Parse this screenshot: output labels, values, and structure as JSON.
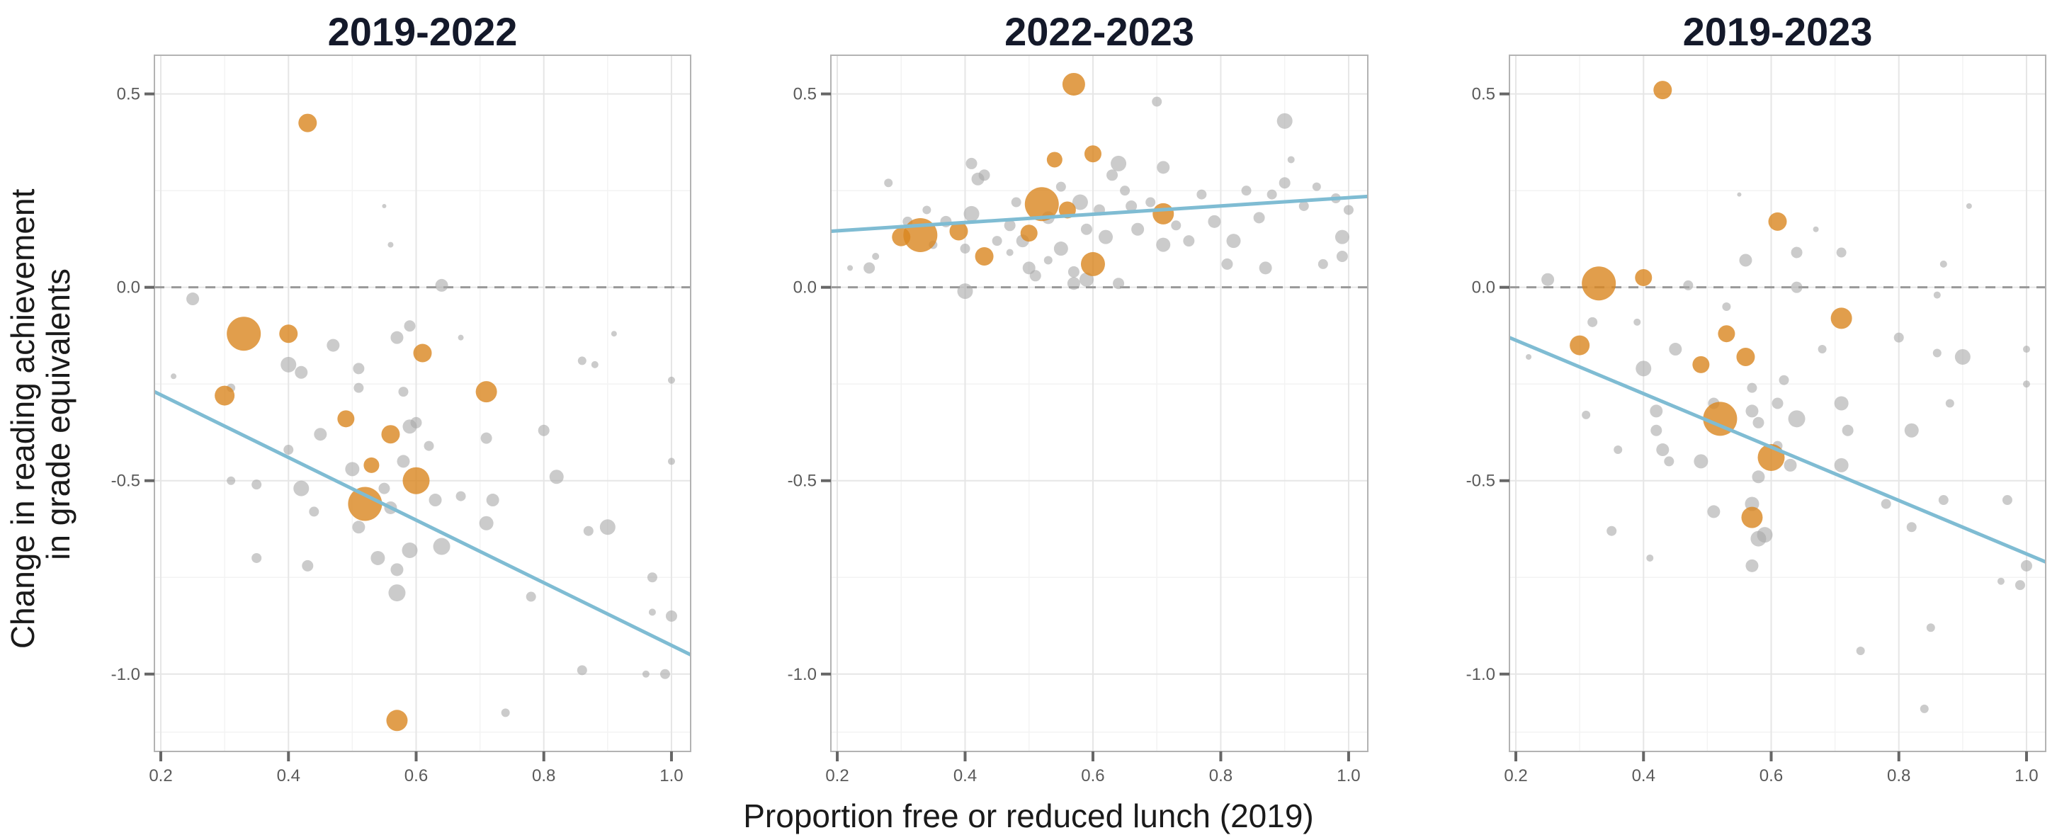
{
  "colors": {
    "highlight": "#d9861f",
    "other": "#a8a8a8",
    "trend": "#7fbcd3",
    "zero_line": "#999999",
    "title": "#14192a"
  },
  "figure": {
    "ylabel_line1": "Change in reading  achievement",
    "ylabel_line2": "in grade equivalents",
    "xlabel": "Proportion free or reduced lunch (2019)"
  },
  "chart_data": [
    {
      "type": "scatter",
      "title": "2019-2022",
      "xlim": [
        0.19,
        1.03
      ],
      "ylim": [
        -1.2,
        0.6
      ],
      "xticks": [
        0.2,
        0.4,
        0.6,
        0.8,
        1.0
      ],
      "xtick_labels": [
        "0.2",
        "0.4",
        "0.6",
        "0.8",
        "1.0"
      ],
      "yticks": [
        -1.0,
        -0.5,
        0.0,
        0.5
      ],
      "ytick_labels": [
        "-1.0",
        "-0.5",
        "0.0",
        "0.5"
      ],
      "zero_line": true,
      "trend": {
        "x0": 0.19,
        "y0": -0.27,
        "x1": 1.03,
        "y1": -0.95
      },
      "highlight": [
        [
          0.43,
          0.425,
          13
        ],
        [
          0.33,
          -0.12,
          24
        ],
        [
          0.4,
          -0.12,
          13
        ],
        [
          0.3,
          -0.28,
          14
        ],
        [
          0.61,
          -0.17,
          13
        ],
        [
          0.71,
          -0.27,
          15
        ],
        [
          0.49,
          -0.34,
          12
        ],
        [
          0.56,
          -0.38,
          13
        ],
        [
          0.53,
          -0.46,
          11
        ],
        [
          0.52,
          -0.56,
          24
        ],
        [
          0.6,
          -0.5,
          19
        ],
        [
          0.57,
          -1.12,
          15
        ]
      ],
      "other": [
        [
          0.25,
          -0.03,
          9
        ],
        [
          0.22,
          -0.23,
          4
        ],
        [
          0.31,
          -0.26,
          6
        ],
        [
          0.31,
          -0.5,
          6
        ],
        [
          0.35,
          -0.51,
          7
        ],
        [
          0.35,
          -0.7,
          7
        ],
        [
          0.4,
          -0.2,
          11
        ],
        [
          0.42,
          -0.22,
          9
        ],
        [
          0.4,
          -0.42,
          7
        ],
        [
          0.42,
          -0.52,
          11
        ],
        [
          0.43,
          -0.72,
          8
        ],
        [
          0.45,
          -0.38,
          9
        ],
        [
          0.44,
          -0.58,
          7
        ],
        [
          0.47,
          -0.15,
          9
        ],
        [
          0.51,
          -0.21,
          8
        ],
        [
          0.51,
          -0.26,
          7
        ],
        [
          0.5,
          -0.47,
          10
        ],
        [
          0.51,
          -0.62,
          9
        ],
        [
          0.55,
          0.21,
          3
        ],
        [
          0.56,
          0.11,
          4
        ],
        [
          0.57,
          -0.13,
          9
        ],
        [
          0.59,
          -0.1,
          8
        ],
        [
          0.58,
          -0.27,
          7
        ],
        [
          0.59,
          -0.36,
          10
        ],
        [
          0.6,
          -0.35,
          8
        ],
        [
          0.58,
          -0.45,
          9
        ],
        [
          0.55,
          -0.52,
          8
        ],
        [
          0.56,
          -0.57,
          9
        ],
        [
          0.54,
          -0.7,
          10
        ],
        [
          0.57,
          -0.73,
          9
        ],
        [
          0.59,
          -0.68,
          11
        ],
        [
          0.57,
          -0.79,
          12
        ],
        [
          0.62,
          -0.41,
          7
        ],
        [
          0.63,
          -0.55,
          9
        ],
        [
          0.64,
          0.005,
          9
        ],
        [
          0.64,
          -0.67,
          12
        ],
        [
          0.67,
          -0.54,
          7
        ],
        [
          0.67,
          -0.13,
          4
        ],
        [
          0.71,
          -0.39,
          8
        ],
        [
          0.72,
          -0.55,
          9
        ],
        [
          0.71,
          -0.61,
          10
        ],
        [
          0.74,
          -1.1,
          6
        ],
        [
          0.78,
          -0.8,
          7
        ],
        [
          0.8,
          -0.37,
          8
        ],
        [
          0.82,
          -0.49,
          10
        ],
        [
          0.86,
          -0.19,
          6
        ],
        [
          0.88,
          -0.2,
          5
        ],
        [
          0.87,
          -0.63,
          7
        ],
        [
          0.9,
          -0.62,
          11
        ],
        [
          0.91,
          -0.12,
          4
        ],
        [
          0.86,
          -0.99,
          7
        ],
        [
          0.96,
          -1.0,
          5
        ],
        [
          0.97,
          -0.75,
          7
        ],
        [
          0.97,
          -0.84,
          5
        ],
        [
          1.0,
          -0.24,
          5
        ],
        [
          1.0,
          -0.45,
          5
        ],
        [
          1.0,
          -0.85,
          8
        ],
        [
          0.99,
          -1.0,
          7
        ]
      ]
    },
    {
      "type": "scatter",
      "title": "2022-2023",
      "xlim": [
        0.19,
        1.03
      ],
      "ylim": [
        -1.2,
        0.6
      ],
      "xticks": [
        0.2,
        0.4,
        0.6,
        0.8,
        1.0
      ],
      "xtick_labels": [
        "0.2",
        "0.4",
        "0.6",
        "0.8",
        "1.0"
      ],
      "yticks": [
        -1.0,
        -0.5,
        0.0,
        0.5
      ],
      "ytick_labels": [
        "-1.0",
        "-0.5",
        "0.0",
        "0.5"
      ],
      "zero_line": true,
      "trend": {
        "x0": 0.19,
        "y0": 0.145,
        "x1": 1.03,
        "y1": 0.235
      },
      "highlight": [
        [
          0.57,
          0.525,
          16
        ],
        [
          0.52,
          0.215,
          24
        ],
        [
          0.33,
          0.135,
          24
        ],
        [
          0.3,
          0.13,
          13
        ],
        [
          0.39,
          0.145,
          13
        ],
        [
          0.43,
          0.08,
          13
        ],
        [
          0.5,
          0.14,
          12
        ],
        [
          0.54,
          0.33,
          11
        ],
        [
          0.56,
          0.2,
          12
        ],
        [
          0.6,
          0.345,
          12
        ],
        [
          0.6,
          0.06,
          17
        ],
        [
          0.71,
          0.19,
          15
        ]
      ],
      "other": [
        [
          0.22,
          0.05,
          4
        ],
        [
          0.25,
          0.05,
          8
        ],
        [
          0.28,
          0.27,
          6
        ],
        [
          0.31,
          0.17,
          7
        ],
        [
          0.35,
          0.11,
          6
        ],
        [
          0.37,
          0.17,
          8
        ],
        [
          0.4,
          0.1,
          7
        ],
        [
          0.41,
          0.32,
          8
        ],
        [
          0.42,
          0.28,
          9
        ],
        [
          0.43,
          0.29,
          8
        ],
        [
          0.41,
          0.19,
          11
        ],
        [
          0.4,
          -0.01,
          11
        ],
        [
          0.45,
          0.12,
          7
        ],
        [
          0.47,
          0.16,
          8
        ],
        [
          0.48,
          0.22,
          7
        ],
        [
          0.49,
          0.12,
          9
        ],
        [
          0.5,
          0.05,
          9
        ],
        [
          0.51,
          0.03,
          8
        ],
        [
          0.53,
          0.18,
          9
        ],
        [
          0.55,
          0.1,
          10
        ],
        [
          0.55,
          0.26,
          7
        ],
        [
          0.57,
          0.04,
          8
        ],
        [
          0.57,
          0.01,
          9
        ],
        [
          0.58,
          0.22,
          11
        ],
        [
          0.59,
          0.15,
          8
        ],
        [
          0.59,
          0.02,
          10
        ],
        [
          0.61,
          0.2,
          8
        ],
        [
          0.62,
          0.13,
          10
        ],
        [
          0.63,
          0.29,
          8
        ],
        [
          0.64,
          0.32,
          11
        ],
        [
          0.64,
          0.01,
          8
        ],
        [
          0.65,
          0.25,
          7
        ],
        [
          0.66,
          0.21,
          8
        ],
        [
          0.67,
          0.15,
          9
        ],
        [
          0.69,
          0.22,
          7
        ],
        [
          0.7,
          0.48,
          7
        ],
        [
          0.71,
          0.31,
          9
        ],
        [
          0.71,
          0.11,
          10
        ],
        [
          0.73,
          0.16,
          7
        ],
        [
          0.75,
          0.12,
          8
        ],
        [
          0.77,
          0.24,
          7
        ],
        [
          0.79,
          0.17,
          9
        ],
        [
          0.81,
          0.06,
          8
        ],
        [
          0.82,
          0.12,
          10
        ],
        [
          0.84,
          0.25,
          7
        ],
        [
          0.86,
          0.18,
          8
        ],
        [
          0.87,
          0.05,
          9
        ],
        [
          0.88,
          0.24,
          7
        ],
        [
          0.9,
          0.43,
          11
        ],
        [
          0.9,
          0.27,
          8
        ],
        [
          0.91,
          0.33,
          5
        ],
        [
          0.93,
          0.21,
          7
        ],
        [
          0.95,
          0.26,
          6
        ],
        [
          0.96,
          0.06,
          7
        ],
        [
          0.98,
          0.23,
          7
        ],
        [
          0.99,
          0.13,
          10
        ],
        [
          0.99,
          0.08,
          8
        ],
        [
          1.0,
          0.2,
          7
        ],
        [
          0.26,
          0.08,
          5
        ],
        [
          0.34,
          0.2,
          6
        ],
        [
          0.47,
          0.09,
          5
        ],
        [
          0.53,
          0.07,
          6
        ]
      ]
    },
    {
      "type": "scatter",
      "title": "2019-2023",
      "xlim": [
        0.19,
        1.03
      ],
      "ylim": [
        -1.2,
        0.6
      ],
      "xticks": [
        0.2,
        0.4,
        0.6,
        0.8,
        1.0
      ],
      "xtick_labels": [
        "0.2",
        "0.4",
        "0.6",
        "0.8",
        "1.0"
      ],
      "yticks": [
        -1.0,
        -0.5,
        0.0,
        0.5
      ],
      "ytick_labels": [
        "-1.0",
        "-0.5",
        "0.0",
        "0.5"
      ],
      "zero_line": true,
      "trend": {
        "x0": 0.19,
        "y0": -0.13,
        "x1": 1.03,
        "y1": -0.71
      },
      "highlight": [
        [
          0.43,
          0.51,
          13
        ],
        [
          0.33,
          0.01,
          24
        ],
        [
          0.4,
          0.025,
          12
        ],
        [
          0.3,
          -0.15,
          14
        ],
        [
          0.61,
          0.17,
          13
        ],
        [
          0.71,
          -0.08,
          15
        ],
        [
          0.53,
          -0.12,
          12
        ],
        [
          0.49,
          -0.2,
          12
        ],
        [
          0.56,
          -0.18,
          13
        ],
        [
          0.52,
          -0.34,
          24
        ],
        [
          0.6,
          -0.44,
          19
        ],
        [
          0.57,
          -0.595,
          15
        ]
      ],
      "other": [
        [
          0.25,
          0.02,
          9
        ],
        [
          0.22,
          -0.18,
          4
        ],
        [
          0.31,
          -0.33,
          6
        ],
        [
          0.32,
          -0.09,
          7
        ],
        [
          0.35,
          -0.63,
          7
        ],
        [
          0.36,
          -0.42,
          6
        ],
        [
          0.4,
          -0.21,
          11
        ],
        [
          0.42,
          -0.32,
          9
        ],
        [
          0.42,
          -0.37,
          8
        ],
        [
          0.43,
          -0.42,
          9
        ],
        [
          0.44,
          -0.45,
          7
        ],
        [
          0.45,
          -0.16,
          9
        ],
        [
          0.47,
          0.005,
          7
        ],
        [
          0.49,
          -0.45,
          10
        ],
        [
          0.51,
          -0.3,
          8
        ],
        [
          0.51,
          -0.58,
          9
        ],
        [
          0.55,
          0.24,
          3
        ],
        [
          0.56,
          0.07,
          9
        ],
        [
          0.57,
          -0.26,
          7
        ],
        [
          0.57,
          -0.32,
          9
        ],
        [
          0.58,
          -0.35,
          8
        ],
        [
          0.58,
          -0.49,
          9
        ],
        [
          0.57,
          -0.56,
          10
        ],
        [
          0.57,
          -0.72,
          9
        ],
        [
          0.58,
          -0.65,
          11
        ],
        [
          0.59,
          -0.64,
          11
        ],
        [
          0.61,
          -0.3,
          8
        ],
        [
          0.61,
          -0.41,
          7
        ],
        [
          0.62,
          -0.24,
          7
        ],
        [
          0.63,
          -0.46,
          9
        ],
        [
          0.64,
          0.0,
          8
        ],
        [
          0.64,
          -0.34,
          12
        ],
        [
          0.64,
          0.09,
          8
        ],
        [
          0.67,
          0.15,
          4
        ],
        [
          0.71,
          0.09,
          7
        ],
        [
          0.71,
          -0.3,
          10
        ],
        [
          0.71,
          -0.46,
          10
        ],
        [
          0.72,
          -0.37,
          8
        ],
        [
          0.74,
          -0.94,
          6
        ],
        [
          0.78,
          -0.56,
          7
        ],
        [
          0.8,
          -0.13,
          7
        ],
        [
          0.82,
          -0.37,
          10
        ],
        [
          0.82,
          -0.62,
          7
        ],
        [
          0.85,
          -0.88,
          6
        ],
        [
          0.86,
          -0.17,
          6
        ],
        [
          0.86,
          -0.02,
          5
        ],
        [
          0.87,
          -0.55,
          7
        ],
        [
          0.87,
          0.06,
          5
        ],
        [
          0.88,
          -0.3,
          6
        ],
        [
          0.9,
          -0.18,
          11
        ],
        [
          0.91,
          0.21,
          4
        ],
        [
          0.84,
          -1.09,
          6
        ],
        [
          0.97,
          -0.55,
          7
        ],
        [
          0.96,
          -0.76,
          5
        ],
        [
          0.99,
          -0.77,
          7
        ],
        [
          1.0,
          -0.72,
          8
        ],
        [
          1.0,
          -0.16,
          5
        ],
        [
          1.0,
          -0.25,
          5
        ],
        [
          0.39,
          -0.09,
          5
        ],
        [
          0.41,
          -0.7,
          5
        ],
        [
          0.53,
          -0.05,
          6
        ],
        [
          0.68,
          -0.16,
          6
        ]
      ]
    }
  ]
}
